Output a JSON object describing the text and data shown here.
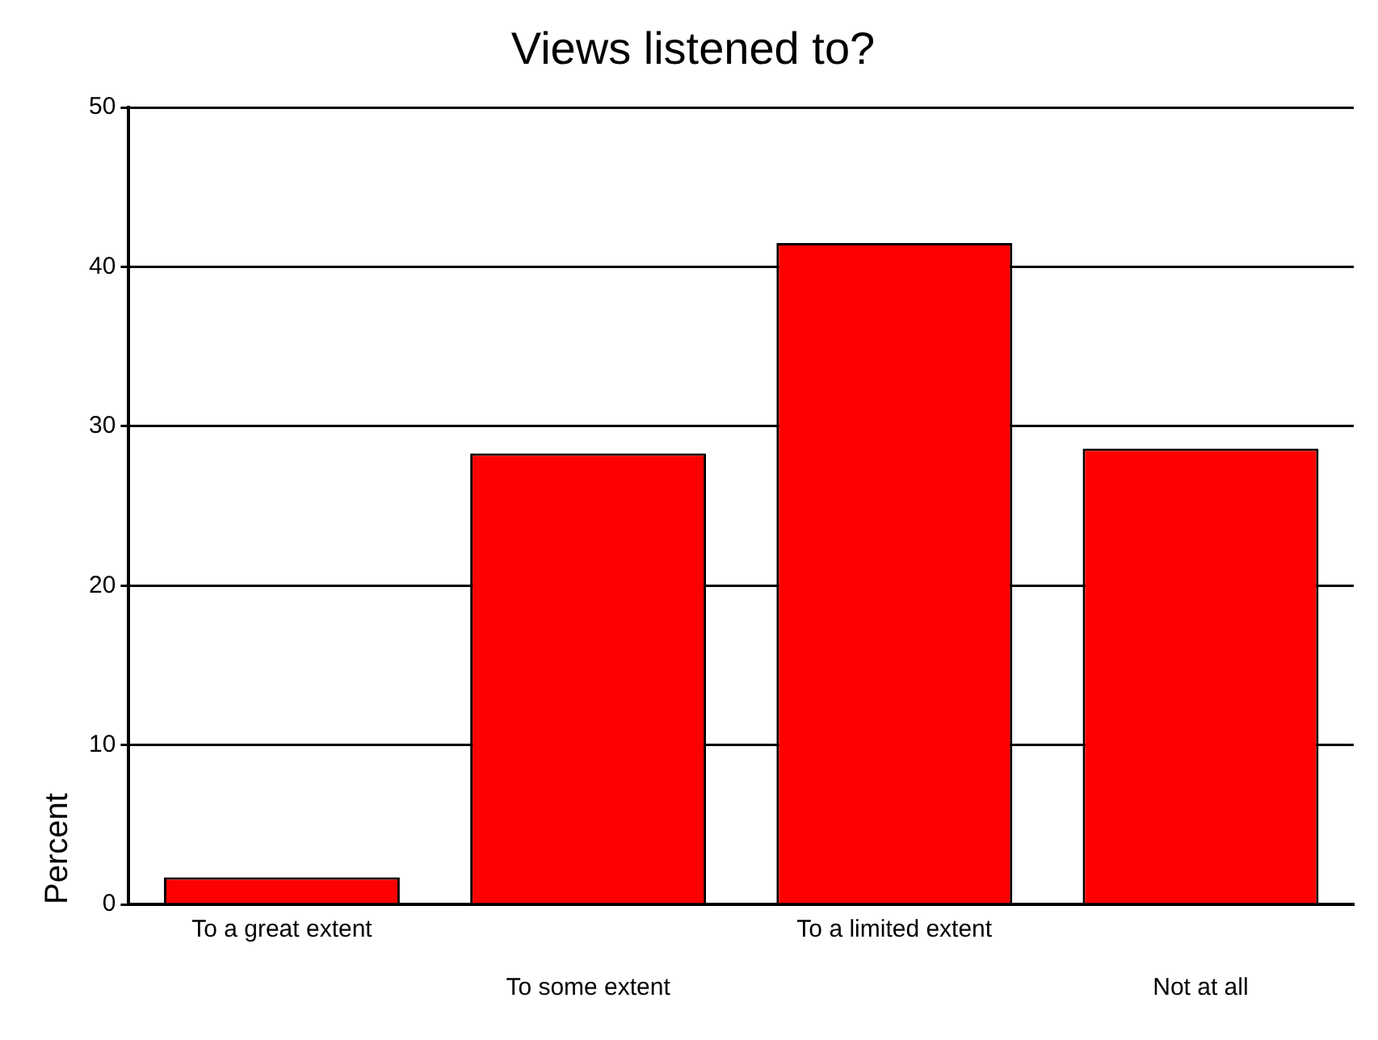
{
  "chart_data": {
    "type": "bar",
    "title": "Views listened to?",
    "ylabel": "Percent",
    "categories": [
      "To a great extent",
      "To some extent",
      "To a limited extent",
      "Not at all"
    ],
    "values": [
      1.7,
      28.3,
      41.5,
      28.6
    ],
    "color": "#ff0000",
    "ylim": [
      0,
      50
    ],
    "yticks": [
      0,
      10,
      20,
      30,
      40,
      50
    ],
    "grid": "y",
    "legend": false
  }
}
